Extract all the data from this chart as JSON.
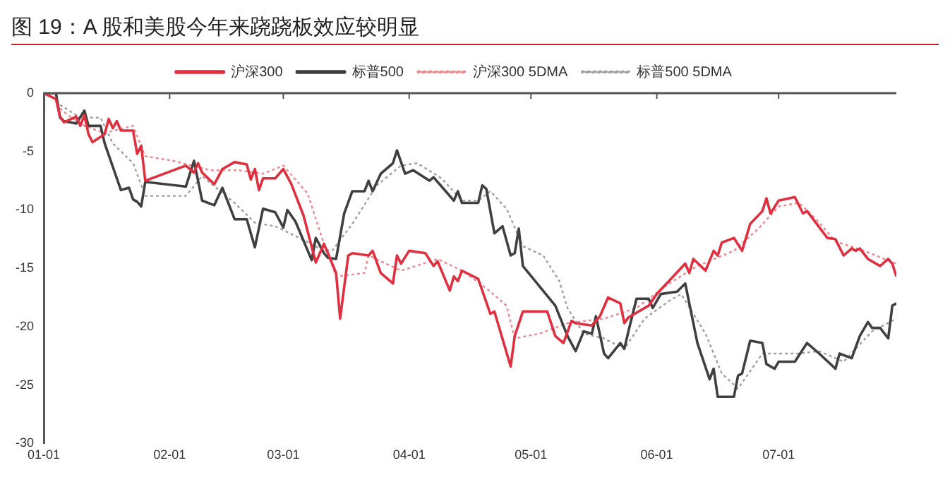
{
  "chart_data": {
    "type": "line",
    "title": "图 19：A 股和美股今年来跷跷板效应较明显",
    "legend": "top",
    "grid": false,
    "marker": "none",
    "xlim": [
      "--01-01",
      "--07-30"
    ],
    "xticks": [
      {
        "value": "--01-01",
        "label": "01-01"
      },
      {
        "value": "--02-01",
        "label": "02-01"
      },
      {
        "value": "--03-01",
        "label": "03-01"
      },
      {
        "value": "--04-01",
        "label": "04-01"
      },
      {
        "value": "--05-01",
        "label": "05-01"
      },
      {
        "value": "--06-01",
        "label": "06-01"
      },
      {
        "value": "--07-01",
        "label": "07-01"
      }
    ],
    "ylim": [
      -30,
      0
    ],
    "yticks": [
      0,
      -5,
      -10,
      -15,
      -20,
      -25,
      -30
    ],
    "series": [
      {
        "name": "沪深300",
        "color": "#e03040",
        "line_style": "solid",
        "x": [
          "--01-01",
          "--01-04",
          "--01-05",
          "--01-06",
          "--01-09",
          "--01-10",
          "--01-11",
          "--01-12",
          "--01-13",
          "--01-16",
          "--01-17",
          "--01-18",
          "--01-19",
          "--01-20",
          "--01-23",
          "--01-24",
          "--01-25",
          "--01-26",
          "--02-05",
          "--02-07",
          "--02-08",
          "--02-09",
          "--02-12",
          "--02-14",
          "--02-17",
          "--02-20",
          "--02-21",
          "--02-22",
          "--02-23",
          "--02-24",
          "--02-27",
          "--03-01",
          "--03-03",
          "--03-06",
          "--03-09",
          "--03-11",
          "--03-12",
          "--03-14",
          "--03-15",
          "--03-17",
          "--03-18",
          "--03-22",
          "--03-23",
          "--03-25",
          "--03-28",
          "--03-29",
          "--03-30",
          "--04-01",
          "--04-05",
          "--04-07",
          "--04-08",
          "--04-11",
          "--04-12",
          "--04-13",
          "--04-14",
          "--04-18",
          "--04-21",
          "--04-22",
          "--04-26",
          "--04-27",
          "--04-29",
          "--05-05",
          "--05-07",
          "--05-09",
          "--05-11",
          "--05-12",
          "--05-16",
          "--05-18",
          "--05-20",
          "--05-23",
          "--05-24",
          "--05-25",
          "--05-30",
          "--06-01",
          "--06-08",
          "--06-09",
          "--06-10",
          "--06-13",
          "--06-15",
          "--06-16",
          "--06-17",
          "--06-20",
          "--06-22",
          "--06-24",
          "--06-27",
          "--06-28",
          "--06-29",
          "--07-01",
          "--07-05",
          "--07-07",
          "--07-08",
          "--07-13",
          "--07-15",
          "--07-17",
          "--07-19",
          "--07-20",
          "--07-21",
          "--07-23",
          "--07-26",
          "--07-28",
          "--07-29",
          "--07-30"
        ],
        "values": [
          0,
          -0.5,
          -2,
          -2.5,
          -2,
          -2.8,
          -1.9,
          -3.5,
          -4.2,
          -3.5,
          -2.2,
          -3,
          -2.4,
          -3.2,
          -3.2,
          -5.2,
          -4.5,
          -7.5,
          -6.2,
          -6.8,
          -6,
          -6.8,
          -7.8,
          -6.5,
          -5.9,
          -6.1,
          -7.4,
          -6.5,
          -8.3,
          -7.3,
          -7.3,
          -6.5,
          -7.8,
          -10.5,
          -14.5,
          -12.9,
          -13.7,
          -15.4,
          -19.3,
          -13.9,
          -13.7,
          -13.9,
          -13.5,
          -15.4,
          -16.3,
          -13.9,
          -14.6,
          -13.5,
          -13.7,
          -14.8,
          -14.4,
          -16.9,
          -15.7,
          -16.1,
          -15.2,
          -15.9,
          -18.9,
          -18.7,
          -23.4,
          -20.8,
          -18.7,
          -18.7,
          -20.8,
          -21.4,
          -19.5,
          -19.7,
          -19.9,
          -19.1,
          -17.5,
          -18,
          -19.7,
          -19.2,
          -18.2,
          -17.2,
          -14.6,
          -15.4,
          -14.2,
          -15.2,
          -13.5,
          -13.9,
          -12.8,
          -12.4,
          -13.5,
          -11.2,
          -10.1,
          -9,
          -10.3,
          -9.2,
          -8.9,
          -10.3,
          -10.1,
          -12.4,
          -12.5,
          -13.9,
          -13.3,
          -13.5,
          -13.3,
          -14.2,
          -14.8,
          -14.2,
          -14.6,
          -15.7
        ]
      },
      {
        "name": "标普500",
        "color": "#404040",
        "line_style": "solid",
        "x": [
          "--01-01",
          "--01-04",
          "--01-05",
          "--01-06",
          "--01-09",
          "--01-11",
          "--01-12",
          "--01-15",
          "--01-16",
          "--01-18",
          "--01-20",
          "--01-22",
          "--01-23",
          "--01-24",
          "--01-25",
          "--01-26",
          "--02-05",
          "--02-07",
          "--02-09",
          "--02-12",
          "--02-14",
          "--02-17",
          "--02-20",
          "--02-22",
          "--02-24",
          "--02-27",
          "--03-01",
          "--03-02",
          "--03-04",
          "--03-08",
          "--03-09",
          "--03-11",
          "--03-12",
          "--03-14",
          "--03-16",
          "--03-18",
          "--03-21",
          "--03-22",
          "--03-23",
          "--03-25",
          "--03-28",
          "--03-29",
          "--03-31",
          "--04-02",
          "--04-06",
          "--04-07",
          "--04-12",
          "--04-13",
          "--04-14",
          "--04-18",
          "--04-19",
          "--04-20",
          "--04-22",
          "--04-24",
          "--04-26",
          "--04-27",
          "--04-28",
          "--04-29",
          "--05-07",
          "--05-10",
          "--05-12",
          "--05-14",
          "--05-16",
          "--05-17",
          "--05-19",
          "--05-20",
          "--05-23",
          "--05-24",
          "--05-25",
          "--05-27",
          "--05-30",
          "--05-31",
          "--06-02",
          "--06-06",
          "--06-08",
          "--06-11",
          "--06-14",
          "--06-15",
          "--06-16",
          "--06-20",
          "--06-21",
          "--06-22",
          "--06-24",
          "--06-27",
          "--06-28",
          "--06-30",
          "--07-01",
          "--07-05",
          "--07-08",
          "--07-11",
          "--07-15",
          "--07-16",
          "--07-19",
          "--07-21",
          "--07-23",
          "--07-24",
          "--07-26",
          "--07-28",
          "--07-29",
          "--07-30"
        ],
        "values": [
          0,
          0,
          -2.1,
          -2.4,
          -2.6,
          -1.5,
          -2.8,
          -2.8,
          -4.3,
          -6.3,
          -8.3,
          -8.1,
          -9.1,
          -9.3,
          -9.7,
          -7.6,
          -8,
          -5.8,
          -9.2,
          -9.6,
          -8.1,
          -10.8,
          -10.8,
          -13.2,
          -9.9,
          -10.2,
          -11.5,
          -10,
          -11,
          -14.3,
          -12.4,
          -13.7,
          -14.1,
          -14.2,
          -10.3,
          -8.4,
          -8.4,
          -7.5,
          -8.4,
          -6.9,
          -6,
          -4.9,
          -6.9,
          -6.6,
          -7.5,
          -7.2,
          -9.2,
          -8.4,
          -9.4,
          -9.4,
          -7.9,
          -8.2,
          -12,
          -11.4,
          -13.9,
          -13.7,
          -11.6,
          -14.8,
          -18.2,
          -20.8,
          -22.1,
          -20.4,
          -20.6,
          -19.1,
          -22.3,
          -22.7,
          -21.4,
          -21.9,
          -20.4,
          -17.6,
          -17.6,
          -18.4,
          -17.2,
          -17,
          -16.3,
          -21.4,
          -24.5,
          -23.6,
          -26,
          -26,
          -24.2,
          -24,
          -21.2,
          -21.4,
          -23.2,
          -23.6,
          -23,
          -23,
          -21.4,
          -22.3,
          -23.6,
          -22.3,
          -22.7,
          -20.8,
          -19.6,
          -20.1,
          -20.1,
          -21,
          -18.2,
          -18
        ]
      },
      {
        "name": "沪深300 5DMA",
        "color": "#f08890",
        "line_style": "dotted",
        "x": [
          "--01-05",
          "--01-07",
          "--01-11",
          "--01-16",
          "--01-23",
          "--01-26",
          "--02-02",
          "--02-11",
          "--02-18",
          "--02-24",
          "--03-01",
          "--03-07",
          "--03-11",
          "--03-14",
          "--03-21",
          "--03-22",
          "--03-30",
          "--04-08",
          "--04-14",
          "--04-20",
          "--04-25",
          "--04-27",
          "--05-03",
          "--05-10",
          "--05-19",
          "--05-27",
          "--06-04",
          "--06-11",
          "--06-20",
          "--06-26",
          "--07-01",
          "--07-06",
          "--07-10",
          "--07-15",
          "--07-22",
          "--07-30"
        ],
        "values": [
          -1.3,
          -1.9,
          -2.8,
          -3.4,
          -2.8,
          -5.4,
          -5.8,
          -6.6,
          -6.6,
          -6.9,
          -6.2,
          -8.6,
          -12.9,
          -15.7,
          -15.4,
          -13.9,
          -15.2,
          -14.2,
          -15.2,
          -16.7,
          -18.2,
          -21,
          -20.6,
          -19.7,
          -19.3,
          -18.4,
          -16.3,
          -14.8,
          -13.5,
          -11.6,
          -9.7,
          -9.4,
          -10.7,
          -12.7,
          -13.5,
          -14.6
        ]
      },
      {
        "name": "标普500 5DMA",
        "color": "#a0a0a0",
        "line_style": "dotted",
        "x": [
          "--01-05",
          "--01-10",
          "--01-15",
          "--01-18",
          "--01-23",
          "--01-26",
          "--02-05",
          "--02-09",
          "--02-17",
          "--02-22",
          "--02-27",
          "--03-05",
          "--03-10",
          "--03-13",
          "--03-18",
          "--03-24",
          "--03-30",
          "--04-03",
          "--04-09",
          "--04-14",
          "--04-18",
          "--04-21",
          "--04-25",
          "--04-29",
          "--05-04",
          "--05-08",
          "--05-10",
          "--05-14",
          "--05-19",
          "--05-24",
          "--05-29",
          "--06-04",
          "--06-07",
          "--06-13",
          "--06-17",
          "--06-21",
          "--06-27",
          "--07-06",
          "--07-11",
          "--07-17",
          "--07-24",
          "--07-30"
        ],
        "values": [
          -1,
          -2.1,
          -2.1,
          -4.3,
          -6,
          -8.8,
          -8.8,
          -7.1,
          -9.4,
          -11.1,
          -11.4,
          -12.4,
          -13.3,
          -13.5,
          -11.2,
          -7.9,
          -6.2,
          -6,
          -7.3,
          -9.2,
          -9.2,
          -8.4,
          -9.9,
          -13.1,
          -13.9,
          -16.1,
          -18.4,
          -20.6,
          -21,
          -21.9,
          -19.3,
          -17.8,
          -17.2,
          -20.6,
          -24,
          -25.3,
          -22.3,
          -22.3,
          -22.1,
          -23,
          -20.4,
          -19.3
        ]
      }
    ]
  }
}
